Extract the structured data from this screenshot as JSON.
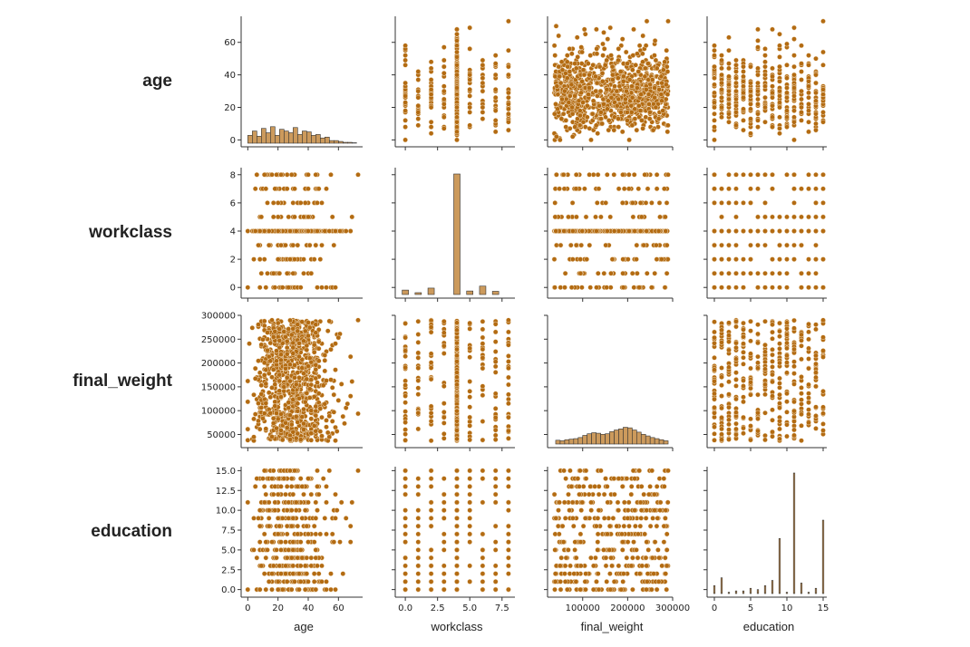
{
  "chart_data": {
    "type": "scatter",
    "title": "",
    "variables": [
      "age",
      "workclass",
      "final_weight",
      "education"
    ],
    "row_labels": [
      "age",
      "workclass",
      "final_weight",
      "education"
    ],
    "column_labels": [
      "age",
      "workclass",
      "final_weight",
      "education"
    ],
    "diagonal": "histogram",
    "colors": {
      "marker": "#b36b12",
      "marker_edge": "#f5e6cf",
      "hist_fill": "#cc9a5c",
      "hist_edge": "#333333",
      "axis": "#333333"
    },
    "axes": {
      "age": {
        "range": [
          -2,
          76
        ],
        "ticks": [
          0,
          20,
          40,
          60
        ],
        "tick_labels": [
          "0",
          "20",
          "40",
          "60"
        ]
      },
      "workclass": {
        "range": [
          -0.5,
          8.5
        ],
        "ticks": [
          0,
          2,
          4,
          6,
          8
        ],
        "tick_labels": [
          "0",
          "2",
          "4",
          "6",
          "8"
        ],
        "x_ticks": [
          0,
          2.5,
          5,
          7.5
        ],
        "x_tick_labels": [
          "0.0",
          "2.5",
          "5.0",
          "7.5"
        ]
      },
      "final_weight": {
        "range": [
          30000,
          300000
        ],
        "ticks": [
          50000,
          100000,
          150000,
          200000,
          250000,
          300000
        ],
        "tick_labels": [
          "50000",
          "100000",
          "150000",
          "200000",
          "250000",
          "300000"
        ],
        "x_ticks": [
          100000,
          200000,
          300000
        ],
        "x_tick_labels": [
          "100000",
          "200000",
          "300000"
        ]
      },
      "education": {
        "range": [
          -0.5,
          15.5
        ],
        "ticks": [
          0,
          2.5,
          5,
          7.5,
          10,
          12.5,
          15
        ],
        "tick_labels": [
          "0.0",
          "2.5",
          "5.0",
          "7.5",
          "10.0",
          "12.5",
          "15.0"
        ],
        "x_ticks": [
          0,
          5,
          10,
          15
        ],
        "x_tick_labels": [
          "0",
          "5",
          "10",
          "15"
        ]
      }
    },
    "histograms": {
      "age": {
        "bin_edges": [
          0,
          3,
          6,
          9,
          12,
          15,
          18,
          21,
          24,
          27,
          30,
          33,
          36,
          39,
          42,
          45,
          48,
          51,
          54,
          57,
          60,
          63,
          66,
          69,
          72
        ],
        "counts": [
          0.9,
          1.4,
          0.8,
          1.7,
          1.2,
          1.9,
          0.9,
          1.6,
          1.4,
          1.2,
          1.8,
          1.0,
          1.4,
          1.3,
          0.9,
          1.0,
          0.6,
          0.7,
          0.3,
          0.3,
          0.2,
          0.1,
          0.1,
          0.05
        ]
      },
      "workclass": {
        "categories": [
          0,
          1,
          2,
          4,
          5,
          6,
          7
        ],
        "counts": [
          0.29,
          0.12,
          0.42,
          7.9,
          0.23,
          0.55,
          0.21
        ]
      },
      "final_weight": {
        "bin_edges": [
          40000,
          50000,
          60000,
          70000,
          80000,
          90000,
          100000,
          110000,
          120000,
          130000,
          140000,
          150000,
          160000,
          170000,
          180000,
          190000,
          200000,
          210000,
          220000,
          230000,
          240000,
          250000,
          260000,
          270000,
          280000,
          290000
        ],
        "counts": [
          0.7,
          0.6,
          0.8,
          0.9,
          1.0,
          1.2,
          1.6,
          1.9,
          2.1,
          2.0,
          1.8,
          1.9,
          2.3,
          2.6,
          2.8,
          3.1,
          3.0,
          2.6,
          2.2,
          1.8,
          1.5,
          1.2,
          1.0,
          0.8,
          0.6
        ]
      },
      "education": {
        "categories": [
          0,
          1,
          2,
          3,
          4,
          5,
          6,
          7,
          8,
          9,
          10,
          11,
          12,
          13,
          14,
          15
        ],
        "counts": [
          0.3,
          0.6,
          0.05,
          0.1,
          0.1,
          0.2,
          0.15,
          0.3,
          0.5,
          2.1,
          0.05,
          4.6,
          0.4,
          0.05,
          0.2,
          2.8
        ]
      }
    },
    "data_ranges": {
      "age": [
        0,
        73
      ],
      "workclass_levels": [
        0,
        1,
        2,
        3,
        4,
        5,
        6,
        7,
        8
      ],
      "final_weight": [
        37000,
        290000
      ],
      "education_levels": [
        0,
        1,
        2,
        3,
        4,
        5,
        6,
        7,
        8,
        9,
        10,
        11,
        12,
        13,
        14,
        15
      ]
    }
  }
}
